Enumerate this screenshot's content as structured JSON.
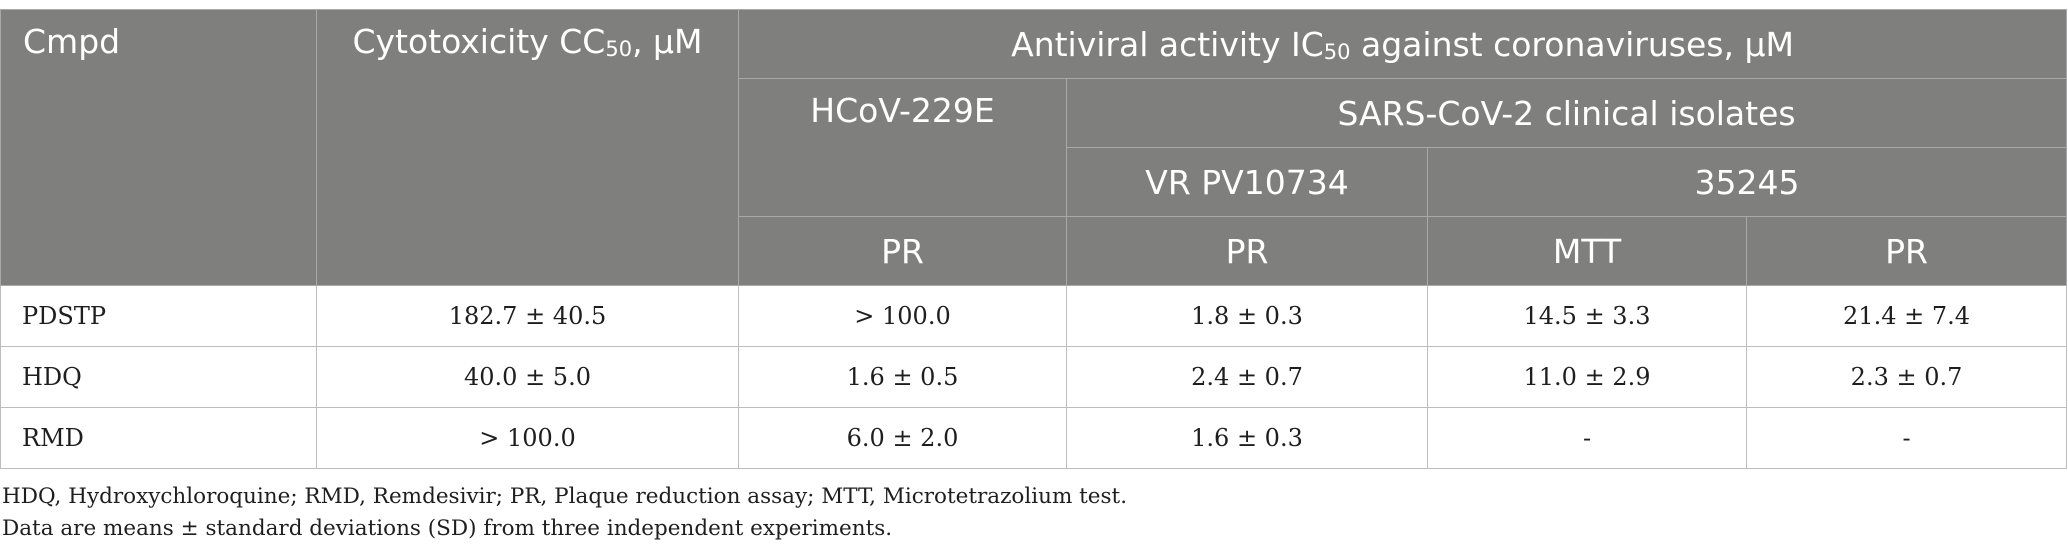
{
  "header": {
    "cmpd": "Cmpd",
    "cytotoxicity": "Cytotoxicity CC",
    "cytotoxicity_sub": "50",
    "cytotoxicity_unit": ", μM",
    "antiviral": "Antiviral activity IC",
    "antiviral_sub": "50",
    "antiviral_suffix": " against coronaviruses, μM",
    "hcov": "HCoV-229E",
    "sars": "SARS-CoV-2 clinical isolates",
    "vr": "VR PV10734",
    "iso35245": "35245",
    "method_hcov": "PR",
    "method_vr": "PR",
    "method_mtt": "MTT",
    "method_pr": "PR"
  },
  "rows": [
    {
      "cmpd": "PDSTP",
      "cc50": "182.7 ± 40.5",
      "hcov_pr": "> 100.0",
      "vr_pr": "1.8 ± 0.3",
      "iso_mtt": "14.5 ± 3.3",
      "iso_pr": "21.4 ± 7.4"
    },
    {
      "cmpd": "HDQ",
      "cc50": "40.0 ± 5.0",
      "hcov_pr": "1.6 ± 0.5",
      "vr_pr": "2.4 ± 0.7",
      "iso_mtt": "11.0 ± 2.9",
      "iso_pr": "2.3 ± 0.7"
    },
    {
      "cmpd": "RMD",
      "cc50": "> 100.0",
      "hcov_pr": "6.0 ± 2.0",
      "vr_pr": "1.6 ± 0.3",
      "iso_mtt": "-",
      "iso_pr": "-"
    }
  ],
  "footnotes": [
    "HDQ, Hydroxychloroquine; RMD, Remdesivir; PR, Plaque reduction assay; MTT, Microtetrazolium test.",
    "Data are means ± standard deviations (SD) from three independent experiments."
  ]
}
